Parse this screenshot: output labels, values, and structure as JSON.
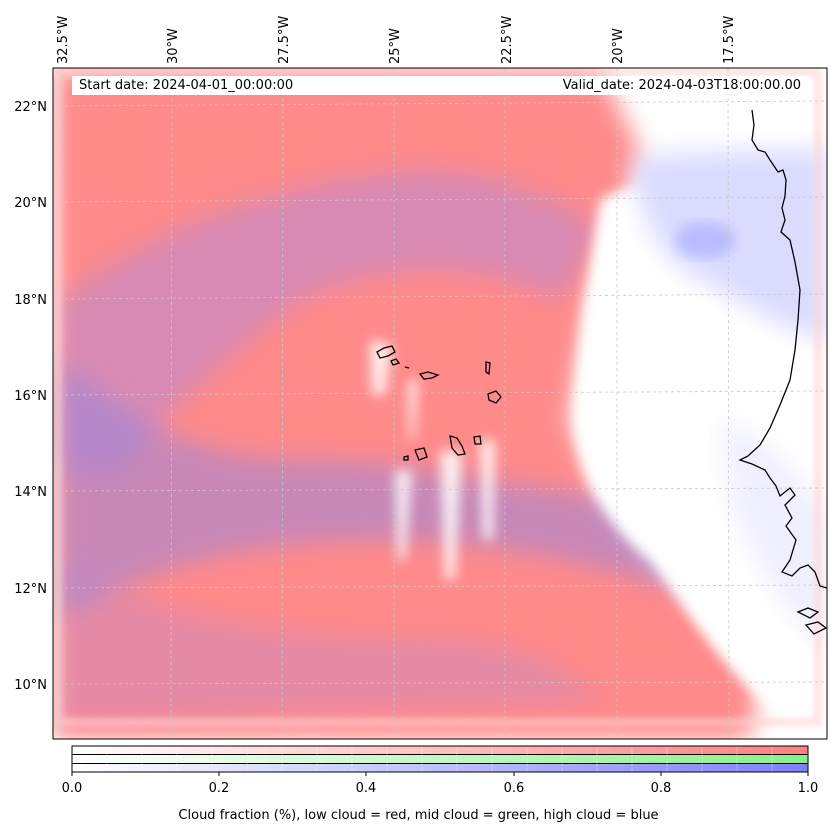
{
  "header": {
    "start_date": "Start date: 2024-04-01_00:00:00",
    "valid_date": "Valid_date: 2024-04-03T18:00:00.00"
  },
  "axes": {
    "longitude_ticks": [
      "32.5°W",
      "30°W",
      "27.5°W",
      "25°W",
      "22.5°W",
      "20°W",
      "17.5°W"
    ],
    "latitude_ticks": [
      "22°N",
      "20°N",
      "18°N",
      "16°N",
      "14°N",
      "12°N",
      "10°N"
    ]
  },
  "colorbar": {
    "ticks": [
      "0.0",
      "0.2",
      "0.4",
      "0.6",
      "0.8",
      "1.0"
    ],
    "title": "Cloud fraction (%), low cloud = red, mid cloud = green, high cloud = blue",
    "colors": {
      "low": "#ff7f7f",
      "mid": "#88f088",
      "high": "#7f7fff"
    }
  },
  "colors": {
    "low_cloud": "#ff8a8a",
    "high_cloud": "#9a86dd",
    "clear": "#ffffff",
    "coastline": "#000000",
    "gridline": "#c8c8c8"
  }
}
